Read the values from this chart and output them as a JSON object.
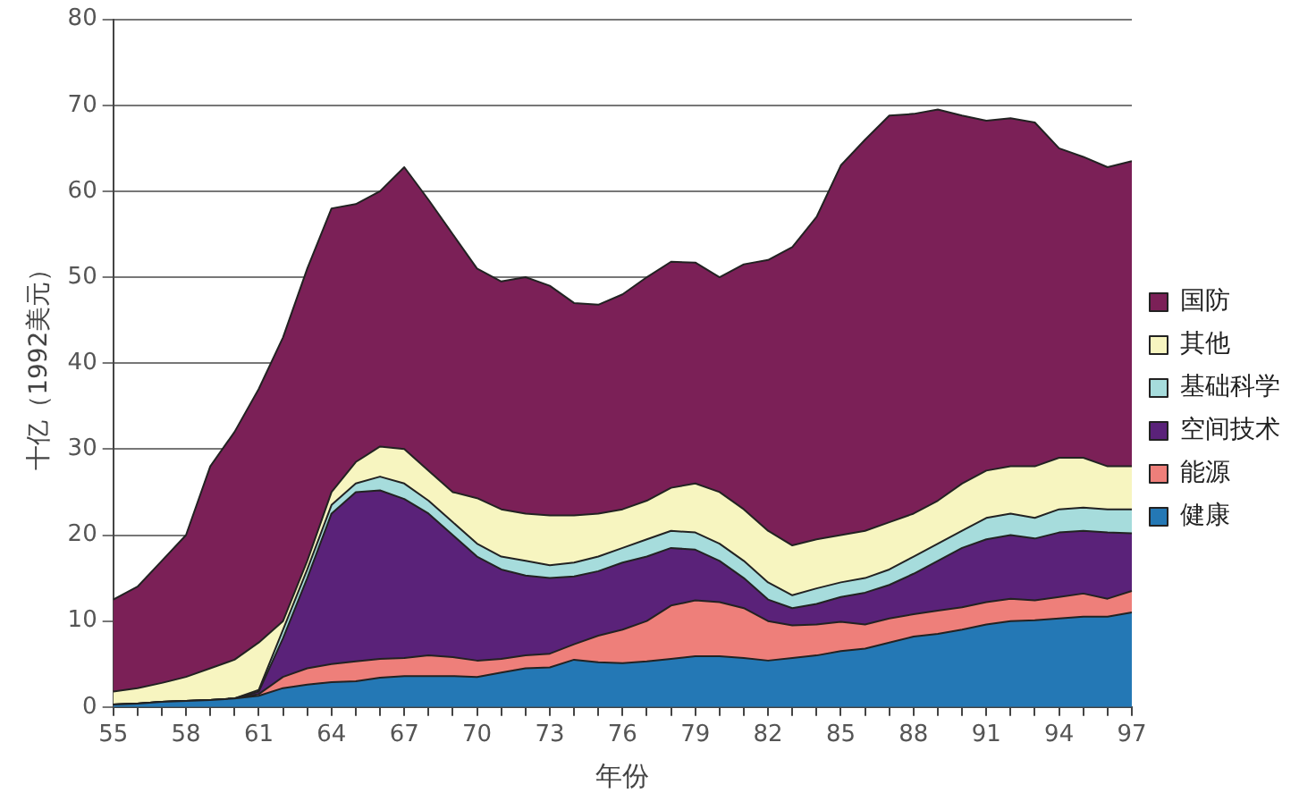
{
  "chart_data": {
    "type": "area",
    "stacked": true,
    "xlabel": "年份",
    "ylabel": "十亿（1992美元）",
    "categories": [
      "55",
      null,
      null,
      "58",
      null,
      null,
      "61",
      null,
      null,
      "64",
      null,
      null,
      "67",
      null,
      null,
      "70",
      null,
      null,
      "73",
      null,
      null,
      "76",
      null,
      null,
      "79",
      null,
      null,
      "82",
      null,
      null,
      "85",
      null,
      null,
      "88",
      null,
      null,
      "91",
      null,
      null,
      "94",
      null,
      null,
      "97"
    ],
    "ylim": [
      0,
      80
    ],
    "yticks": [
      0,
      10,
      20,
      30,
      40,
      50,
      60,
      70,
      80
    ],
    "grid": "y",
    "legend": "right",
    "marker": "none",
    "series": [
      {
        "name": "健康",
        "color": "#2478b5",
        "values": [
          0.3,
          0.4,
          0.6,
          0.7,
          0.8,
          1,
          1.3,
          2.2,
          2.6,
          2.9,
          3,
          3.4,
          3.6,
          3.6,
          3.6,
          3.5,
          4,
          4.5,
          4.6,
          5.5,
          5.2,
          5.1,
          5.3,
          5.6,
          5.9,
          5.9,
          5.7,
          5.4,
          5.7,
          6,
          6.5,
          6.8,
          7.5,
          8.2,
          8.5,
          9,
          9.6,
          10,
          10.1,
          10.3,
          10.5,
          10.5,
          11
        ]
      },
      {
        "name": "能源",
        "color": "#ee7f7a",
        "values": [
          0,
          0,
          0,
          0,
          0,
          0,
          0.2,
          1.3,
          1.9,
          2.1,
          2.3,
          2.2,
          2.1,
          2.4,
          2.2,
          1.9,
          1.6,
          1.5,
          1.6,
          1.8,
          3.1,
          3.9,
          4.7,
          6.2,
          6.5,
          6.3,
          5.8,
          4.6,
          3.8,
          3.6,
          3.4,
          2.8,
          2.8,
          2.6,
          2.7,
          2.6,
          2.6,
          2.6,
          2.3,
          2.5,
          2.7,
          2.1,
          2.5
        ]
      },
      {
        "name": "空间技术",
        "color": "#5a2279",
        "values": [
          0,
          0,
          0,
          0,
          0,
          0,
          0.3,
          4.5,
          10.5,
          17.5,
          19.7,
          19.6,
          18.5,
          16.5,
          14.2,
          12.1,
          10.4,
          9.3,
          8.8,
          7.9,
          7.5,
          7.8,
          7.5,
          6.7,
          5.9,
          4.8,
          3.5,
          2.5,
          2,
          2.4,
          2.9,
          3.7,
          3.9,
          4.7,
          5.8,
          6.9,
          7.3,
          7.4,
          7.2,
          7.5,
          7.3,
          7.7,
          6.7
        ]
      },
      {
        "name": "基础科学",
        "color": "#a6dcdc",
        "values": [
          0,
          0,
          0,
          0,
          0,
          0,
          0.2,
          1,
          1,
          1,
          1,
          1.6,
          1.8,
          1.5,
          1.5,
          1.5,
          1.5,
          1.7,
          1.5,
          1.6,
          1.7,
          1.7,
          2,
          2,
          2,
          2,
          2,
          2,
          1.5,
          1.8,
          1.7,
          1.7,
          1.8,
          2,
          2,
          2,
          2.5,
          2.5,
          2.4,
          2.7,
          2.7,
          2.7,
          2.8
        ]
      },
      {
        "name": "其他",
        "color": "#f7f5c0",
        "values": [
          1.5,
          1.8,
          2.2,
          2.8,
          3.7,
          4.5,
          5.5,
          1,
          1,
          1.5,
          2.5,
          3.5,
          4,
          3.5,
          3.5,
          5.3,
          5.5,
          5.5,
          5.8,
          5.5,
          5,
          4.5,
          4.5,
          5,
          5.7,
          6,
          6,
          6,
          5.8,
          5.7,
          5.5,
          5.5,
          5.5,
          5,
          5,
          5.5,
          5.5,
          5.5,
          6,
          6,
          5.8,
          5,
          5
        ]
      },
      {
        "name": "国防",
        "color": "#7b2057",
        "values": [
          10.7,
          11.8,
          14.2,
          16.5,
          23.5,
          26.5,
          29.5,
          33,
          34,
          33,
          30,
          29.7,
          32.8,
          31.5,
          30,
          26.7,
          26.5,
          27.5,
          26.7,
          24.7,
          24.3,
          25,
          26,
          26.3,
          25.7,
          25,
          28.5,
          31.5,
          34.7,
          37.5,
          43,
          45.5,
          47.3,
          46.5,
          45.5,
          42.8,
          40.7,
          40.5,
          40,
          36,
          35,
          34.8,
          35.5
        ]
      }
    ]
  }
}
